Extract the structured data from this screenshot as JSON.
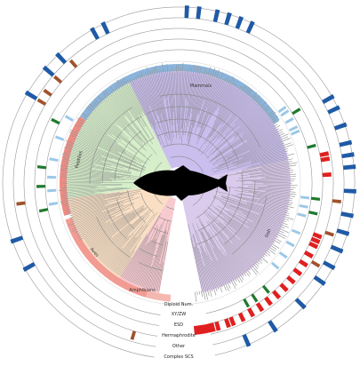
{
  "clades": [
    {
      "key": "mammals",
      "label": "Mammals",
      "color": "#b8a8e8"
    },
    {
      "key": "fish",
      "label": "Fish",
      "color": "#cdb8e6"
    },
    {
      "key": "amphibians",
      "label": "Amphibians",
      "color": "#f4b8c0"
    },
    {
      "key": "aves",
      "label": "Aves",
      "color": "#f8d4b0"
    },
    {
      "key": "reptiles",
      "label": "Reptiles",
      "color": "#c8eab8"
    }
  ],
  "tracks": [
    {
      "key": "diploid",
      "label": "Diploid Num.",
      "color": "#7a7a7a"
    },
    {
      "key": "xyzw",
      "label": "XY/ZW",
      "color": "#9cc8e8"
    },
    {
      "key": "esd",
      "label": "ESD",
      "color": "#1f7a2e"
    },
    {
      "key": "hermaphrodite",
      "label": "Hermaphrodite",
      "color": "#e02020"
    },
    {
      "key": "other",
      "label": "Other",
      "color": "#a0522d"
    },
    {
      "key": "complex",
      "label": "Complex SCS",
      "color": "#1f5aa6"
    }
  ],
  "colors": {
    "mammal_band": "#8ab4dc",
    "reptile_band": "#f08a80",
    "center_silhouette": "#000000",
    "ring_line": "#9a9a9a"
  },
  "center_icon": "fish-silhouette-icon"
}
